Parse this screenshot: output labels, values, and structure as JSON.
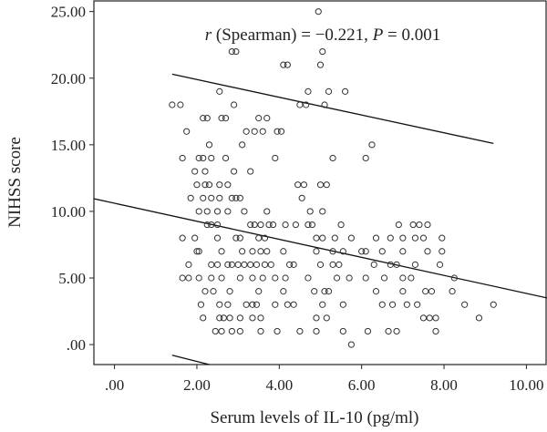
{
  "chart_data": {
    "type": "scatter",
    "title": "",
    "annotation": {
      "r_symbol": "r",
      "r_text": " (Spearman) = −0.221, ",
      "p_symbol": "P",
      "p_text": " = 0.001"
    },
    "xlabel": "Serum levels of IL-10 (pg/ml)",
    "ylabel": "NIHSS score",
    "xlim": [
      -0.5,
      10.5
    ],
    "ylim": [
      -1.5,
      25.8
    ],
    "x_ticks": [
      0,
      2,
      4,
      6,
      8,
      10
    ],
    "x_tick_labels": [
      ".00",
      "2.00",
      "4.00",
      "6.00",
      "8.00",
      "10.00"
    ],
    "y_ticks": [
      0,
      5,
      10,
      15,
      20,
      25
    ],
    "y_tick_labels": [
      ".00",
      "5.00",
      "10.00",
      "15.00",
      "20.00",
      "25.00"
    ],
    "grid": false,
    "marker_color": "#333333",
    "line_color": "#111111",
    "fit_line": {
      "x": [
        -0.5,
        10.5
      ],
      "y": [
        10.95,
        3.5
      ]
    },
    "upper_band": {
      "x": [
        1.4,
        9.2
      ],
      "y": [
        20.3,
        15.1
      ]
    },
    "lower_band": {
      "x": [
        1.4,
        2.3
      ],
      "y": [
        -0.8,
        -1.5
      ]
    },
    "points": [
      [
        4.95,
        25
      ],
      [
        2.85,
        22
      ],
      [
        2.95,
        22
      ],
      [
        5.05,
        22
      ],
      [
        4.1,
        21
      ],
      [
        4.2,
        21
      ],
      [
        5.0,
        21
      ],
      [
        2.55,
        19
      ],
      [
        4.7,
        19
      ],
      [
        5.2,
        19
      ],
      [
        5.6,
        19
      ],
      [
        1.4,
        18
      ],
      [
        1.6,
        18
      ],
      [
        2.9,
        18
      ],
      [
        4.5,
        18
      ],
      [
        4.65,
        18
      ],
      [
        5.1,
        18
      ],
      [
        2.15,
        17
      ],
      [
        2.25,
        17
      ],
      [
        2.6,
        17
      ],
      [
        2.7,
        17
      ],
      [
        3.5,
        17
      ],
      [
        3.7,
        17
      ],
      [
        1.75,
        16
      ],
      [
        3.2,
        16
      ],
      [
        3.4,
        16
      ],
      [
        3.6,
        16
      ],
      [
        3.95,
        16
      ],
      [
        4.05,
        16
      ],
      [
        2.3,
        15
      ],
      [
        3.1,
        15
      ],
      [
        6.25,
        15
      ],
      [
        1.65,
        14
      ],
      [
        2.05,
        14
      ],
      [
        2.15,
        14
      ],
      [
        2.35,
        14
      ],
      [
        2.7,
        14
      ],
      [
        3.9,
        14
      ],
      [
        5.3,
        14
      ],
      [
        6.1,
        14
      ],
      [
        1.95,
        13
      ],
      [
        2.2,
        13
      ],
      [
        2.9,
        13
      ],
      [
        3.3,
        13
      ],
      [
        2.0,
        12
      ],
      [
        2.2,
        12
      ],
      [
        2.3,
        12
      ],
      [
        2.55,
        12
      ],
      [
        2.75,
        12
      ],
      [
        4.45,
        12
      ],
      [
        4.6,
        12
      ],
      [
        5.0,
        12
      ],
      [
        5.15,
        12
      ],
      [
        1.85,
        11
      ],
      [
        2.15,
        11
      ],
      [
        2.35,
        11
      ],
      [
        2.55,
        11
      ],
      [
        2.85,
        11
      ],
      [
        2.95,
        11
      ],
      [
        3.05,
        11
      ],
      [
        4.55,
        11
      ],
      [
        2.05,
        10
      ],
      [
        2.25,
        10
      ],
      [
        2.5,
        10
      ],
      [
        2.75,
        10
      ],
      [
        3.15,
        10
      ],
      [
        3.7,
        10
      ],
      [
        4.75,
        10
      ],
      [
        5.05,
        10
      ],
      [
        2.25,
        9
      ],
      [
        2.35,
        9
      ],
      [
        2.5,
        9
      ],
      [
        3.3,
        9
      ],
      [
        3.4,
        9
      ],
      [
        3.55,
        9
      ],
      [
        3.75,
        9
      ],
      [
        3.85,
        9
      ],
      [
        4.15,
        9
      ],
      [
        4.4,
        9
      ],
      [
        4.7,
        9
      ],
      [
        4.8,
        9
      ],
      [
        5.5,
        9
      ],
      [
        6.9,
        9
      ],
      [
        7.25,
        9
      ],
      [
        7.4,
        9
      ],
      [
        7.6,
        9
      ],
      [
        1.65,
        8
      ],
      [
        1.95,
        8
      ],
      [
        2.5,
        8
      ],
      [
        2.95,
        8
      ],
      [
        3.05,
        8
      ],
      [
        3.5,
        8
      ],
      [
        3.65,
        8
      ],
      [
        4.9,
        8
      ],
      [
        5.05,
        8
      ],
      [
        5.35,
        8
      ],
      [
        5.75,
        8
      ],
      [
        6.35,
        8
      ],
      [
        6.7,
        8
      ],
      [
        7.0,
        8
      ],
      [
        7.3,
        8
      ],
      [
        7.5,
        8
      ],
      [
        7.95,
        8
      ],
      [
        2.0,
        7
      ],
      [
        2.05,
        7
      ],
      [
        2.6,
        7
      ],
      [
        3.1,
        7
      ],
      [
        3.35,
        7
      ],
      [
        3.55,
        7
      ],
      [
        3.7,
        7
      ],
      [
        4.1,
        7
      ],
      [
        4.9,
        7
      ],
      [
        5.3,
        7
      ],
      [
        5.55,
        7
      ],
      [
        6.0,
        7
      ],
      [
        6.1,
        7
      ],
      [
        6.5,
        7
      ],
      [
        7.0,
        7
      ],
      [
        7.6,
        7
      ],
      [
        7.95,
        7
      ],
      [
        1.8,
        6
      ],
      [
        2.35,
        6
      ],
      [
        2.5,
        6
      ],
      [
        2.75,
        6
      ],
      [
        2.85,
        6
      ],
      [
        3.0,
        6
      ],
      [
        3.15,
        6
      ],
      [
        3.3,
        6
      ],
      [
        3.45,
        6
      ],
      [
        3.65,
        6
      ],
      [
        3.8,
        6
      ],
      [
        4.25,
        6
      ],
      [
        4.35,
        6
      ],
      [
        5.0,
        6
      ],
      [
        5.3,
        6
      ],
      [
        5.45,
        6
      ],
      [
        6.3,
        6
      ],
      [
        6.7,
        6
      ],
      [
        6.85,
        6
      ],
      [
        7.3,
        6
      ],
      [
        7.9,
        6
      ],
      [
        1.65,
        5
      ],
      [
        1.8,
        5
      ],
      [
        2.05,
        5
      ],
      [
        2.35,
        5
      ],
      [
        2.6,
        5
      ],
      [
        3.05,
        5
      ],
      [
        3.35,
        5
      ],
      [
        3.6,
        5
      ],
      [
        3.9,
        5
      ],
      [
        4.15,
        5
      ],
      [
        4.7,
        5
      ],
      [
        5.4,
        5
      ],
      [
        5.7,
        5
      ],
      [
        6.1,
        5
      ],
      [
        6.55,
        5
      ],
      [
        7.0,
        5
      ],
      [
        7.2,
        5
      ],
      [
        8.25,
        5
      ],
      [
        2.2,
        4
      ],
      [
        2.4,
        4
      ],
      [
        2.8,
        4
      ],
      [
        3.5,
        4
      ],
      [
        4.1,
        4
      ],
      [
        4.85,
        4
      ],
      [
        5.1,
        4
      ],
      [
        5.2,
        4
      ],
      [
        6.35,
        4
      ],
      [
        7.0,
        4
      ],
      [
        7.55,
        4
      ],
      [
        7.7,
        4
      ],
      [
        8.2,
        4
      ],
      [
        2.1,
        3
      ],
      [
        2.55,
        3
      ],
      [
        2.75,
        3
      ],
      [
        3.2,
        3
      ],
      [
        3.35,
        3
      ],
      [
        3.45,
        3
      ],
      [
        3.9,
        3
      ],
      [
        4.2,
        3
      ],
      [
        4.35,
        3
      ],
      [
        5.05,
        3
      ],
      [
        5.55,
        3
      ],
      [
        6.5,
        3
      ],
      [
        6.75,
        3
      ],
      [
        7.1,
        3
      ],
      [
        7.35,
        3
      ],
      [
        8.5,
        3
      ],
      [
        9.2,
        3
      ],
      [
        2.15,
        2
      ],
      [
        2.55,
        2
      ],
      [
        2.65,
        2
      ],
      [
        2.8,
        2
      ],
      [
        3.05,
        2
      ],
      [
        3.35,
        2
      ],
      [
        3.55,
        2
      ],
      [
        4.9,
        2
      ],
      [
        5.15,
        2
      ],
      [
        7.5,
        2
      ],
      [
        7.65,
        2
      ],
      [
        7.8,
        2
      ],
      [
        8.85,
        2
      ],
      [
        2.45,
        1
      ],
      [
        2.6,
        1
      ],
      [
        2.85,
        1
      ],
      [
        3.05,
        1
      ],
      [
        3.55,
        1
      ],
      [
        3.95,
        1
      ],
      [
        4.5,
        1
      ],
      [
        4.9,
        1
      ],
      [
        5.55,
        1
      ],
      [
        6.15,
        1
      ],
      [
        6.65,
        1
      ],
      [
        6.85,
        1
      ],
      [
        7.8,
        1
      ],
      [
        5.75,
        0
      ]
    ]
  }
}
